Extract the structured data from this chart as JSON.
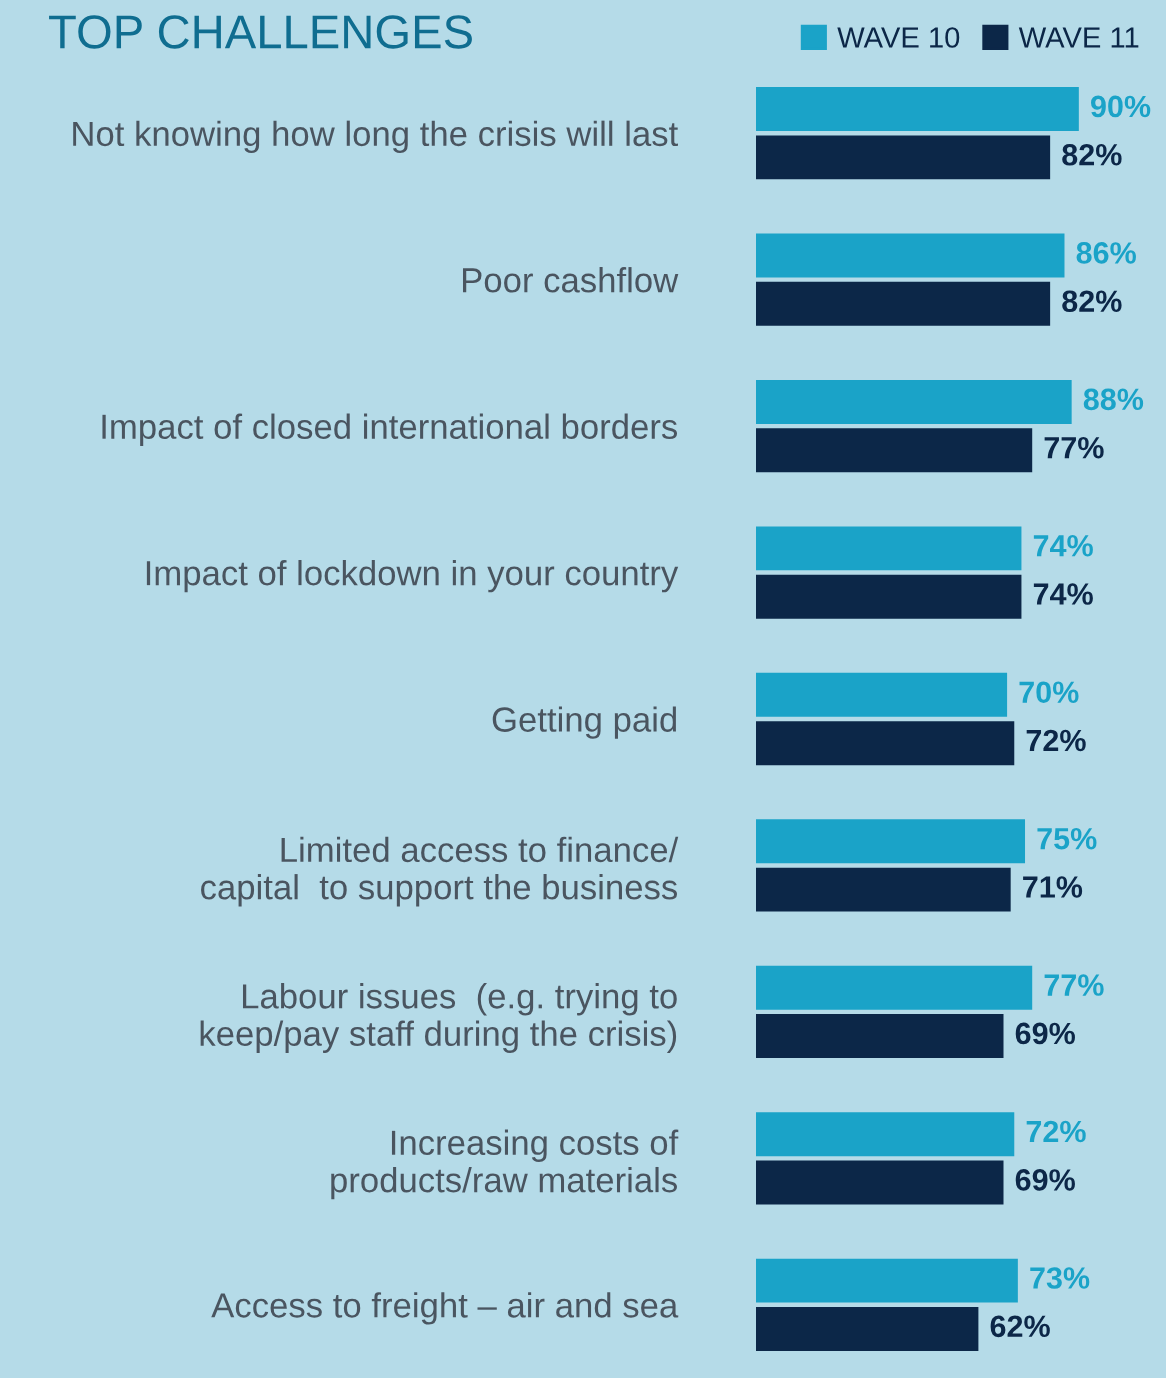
{
  "chart_data": {
    "type": "bar",
    "orientation": "horizontal",
    "title": "TOP CHALLENGES",
    "categories": [
      "Not knowing how long the crisis will last",
      "Poor cashflow",
      "Impact of closed international borders",
      "Impact of lockdown in your country",
      "Getting paid",
      "Limited access to finance/\ncapital  to support the business",
      "Labour issues  (e.g. trying to\nkeep/pay staff during the crisis)",
      "Increasing costs of\nproducts/raw materials",
      "Access to freight – air and sea"
    ],
    "series": [
      {
        "name": "WAVE 10",
        "color": "#1aa3c8",
        "values": [
          90,
          86,
          88,
          74,
          70,
          75,
          77,
          72,
          73
        ],
        "value_labels": [
          "90%",
          "86%",
          "88%",
          "74%",
          "70%",
          "75%",
          "77%",
          "72%",
          "73%"
        ]
      },
      {
        "name": "WAVE 11",
        "color": "#0c2748",
        "values": [
          82,
          82,
          77,
          74,
          72,
          71,
          69,
          69,
          62
        ],
        "value_labels": [
          "82%",
          "82%",
          "77%",
          "74%",
          "72%",
          "71%",
          "69%",
          "69%",
          "62%"
        ]
      }
    ],
    "legend": "top right",
    "grid": false
  }
}
